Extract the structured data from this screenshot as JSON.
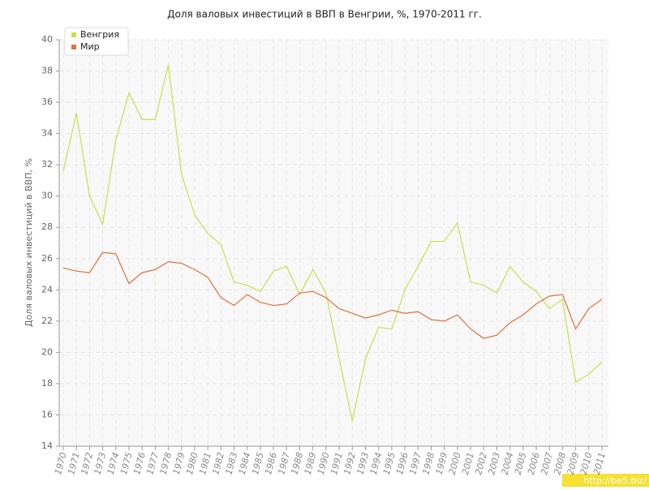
{
  "chart_data": {
    "type": "line",
    "title": "Доля валовых инвестиций в ВВП в Венгрии, %, 1970-2011 гг.",
    "y_label": "Доля валовых инвестиций в ВВП, %",
    "categories": [
      "1970",
      "1971",
      "1972",
      "1973",
      "1974",
      "1975",
      "1976",
      "1977",
      "1978",
      "1979",
      "1980",
      "1981",
      "1982",
      "1983",
      "1984",
      "1985",
      "1986",
      "1987",
      "1988",
      "1989",
      "1990",
      "1991",
      "1992",
      "1993",
      "1994",
      "1995",
      "1996",
      "1997",
      "1998",
      "1999",
      "2000",
      "2001",
      "2002",
      "2003",
      "2004",
      "2005",
      "2006",
      "2007",
      "2008",
      "2009",
      "2010",
      "2011"
    ],
    "series": [
      {
        "name": "Венгрия",
        "color": "#c5e04a",
        "values": [
          31.6,
          35.3,
          30.0,
          28.2,
          33.6,
          36.6,
          34.9,
          34.9,
          38.4,
          31.4,
          28.8,
          27.6,
          26.9,
          24.5,
          24.3,
          23.9,
          25.2,
          25.5,
          23.7,
          25.3,
          23.8,
          19.6,
          15.6,
          19.6,
          21.6,
          21.5,
          24.0,
          25.5,
          27.1,
          27.1,
          28.3,
          24.5,
          24.3,
          23.8,
          25.5,
          24.5,
          23.9,
          22.8,
          23.4,
          18.1,
          18.6,
          19.4
        ]
      },
      {
        "name": "Мир",
        "color": "#e0703c",
        "values": [
          25.4,
          25.2,
          25.1,
          26.4,
          26.3,
          24.4,
          25.1,
          25.3,
          25.8,
          25.7,
          25.3,
          24.8,
          23.5,
          23.0,
          23.7,
          23.2,
          23.0,
          23.1,
          23.8,
          23.9,
          23.5,
          22.8,
          22.5,
          22.2,
          22.4,
          22.7,
          22.5,
          22.6,
          22.1,
          22.0,
          22.4,
          21.5,
          20.9,
          21.1,
          21.9,
          22.4,
          23.1,
          23.6,
          23.7,
          21.5,
          22.8,
          23.4
        ]
      }
    ],
    "ylim": [
      14,
      40
    ],
    "yticks": [
      14,
      16,
      18,
      20,
      22,
      24,
      26,
      28,
      30,
      32,
      34,
      36,
      38,
      40
    ],
    "grid": true,
    "legend": "top-left",
    "source": "http://be5.biz/"
  }
}
